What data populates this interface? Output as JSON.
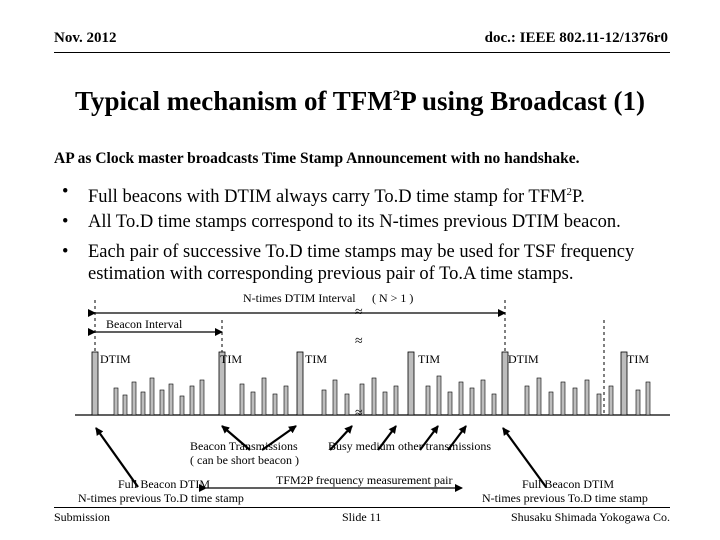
{
  "header": {
    "date": "Nov. 2012",
    "doc_id": "doc.: IEEE 802.11-12/1376r0"
  },
  "title": {
    "main": "Typical mechanism of TFM",
    "sup": "2",
    "rest": "P using Broadcast (1)"
  },
  "subtitle": "AP as Clock master broadcasts Time Stamp Announcement with no handshake.",
  "bullets": [
    {
      "dot": "•",
      "pre": "Full beacons with DTIM always carry To.D time stamp for TFM",
      "sup": "2",
      "post": "P."
    },
    {
      "dot": "•",
      "text": "All To.D time stamps correspond to its N-times previous DTIM beacon."
    },
    {
      "dot": "•",
      "text": "Each pair of successive To.D time stamps may be used for TSF frequency estimation with corresponding previous pair of To.A time stamps."
    }
  ],
  "diagram": {
    "n_times_label": "N-times DTIM Interval",
    "n_cond": "( N > 1 )",
    "beacon_interval": "Beacon Interval",
    "break_mark": "≈",
    "beacon_labels": [
      "DTIM",
      "TIM",
      "TIM",
      "TIM",
      "DTIM",
      "TIM"
    ],
    "beacon_tx_line1": "Beacon Transmissions",
    "beacon_tx_line2": "( can be short beacon )",
    "busy_medium": "Busy medium other transmissions",
    "full_beacon_left_1": "Full Beacon DTIM",
    "full_beacon_left_2": "N-times previous To.D time stamp",
    "pair_label": "TFM2P frequency measurement pair",
    "full_beacon_right_1": "Full Beacon DTIM",
    "full_beacon_right_2": "N-times previous To.D time stamp"
  },
  "footer": {
    "left": "Submission",
    "center": "Slide 11",
    "right": "Shusaku Shimada Yokogawa Co."
  }
}
